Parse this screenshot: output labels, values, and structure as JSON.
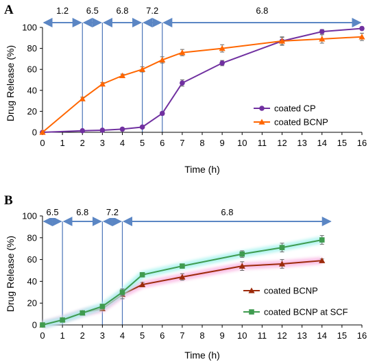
{
  "chart_data": [
    {
      "panel": "A",
      "type": "line",
      "xlabel": "Time (h)",
      "ylabel": "Drug Release (%)",
      "xlim": [
        0,
        16
      ],
      "ylim": [
        0,
        100
      ],
      "xticks": [
        0,
        1,
        2,
        3,
        4,
        5,
        6,
        7,
        8,
        9,
        10,
        11,
        12,
        13,
        14,
        15,
        16
      ],
      "yticks": [
        0,
        20,
        40,
        60,
        80,
        100
      ],
      "grid": false,
      "legend": "lower-right",
      "ph_segments": [
        {
          "label": "1.2",
          "from": 0,
          "to": 2
        },
        {
          "label": "6.5",
          "from": 2,
          "to": 3
        },
        {
          "label": "6.8",
          "from": 3,
          "to": 5
        },
        {
          "label": "7.2",
          "from": 5,
          "to": 6
        },
        {
          "label": "6.8",
          "from": 6,
          "to": 16
        }
      ],
      "series": [
        {
          "name": "coated CP",
          "color": "#7030a0",
          "marker": "circle",
          "x": [
            0,
            2,
            3,
            4,
            5,
            6,
            7,
            9,
            12,
            14,
            16
          ],
          "y": [
            0,
            1.5,
            2,
            3,
            5,
            18,
            47,
            66,
            87,
            96,
            99
          ],
          "err": [
            0,
            0.5,
            0.5,
            0.5,
            1,
            1.5,
            3,
            2.5,
            4,
            2,
            1.5
          ]
        },
        {
          "name": "coated BCNP",
          "color": "#ff6600",
          "marker": "triangle",
          "x": [
            0,
            2,
            3,
            4,
            5,
            6,
            7,
            9,
            12,
            14,
            16
          ],
          "y": [
            0,
            32,
            46,
            54,
            60,
            69,
            76,
            80,
            87,
            89,
            91
          ],
          "err": [
            0,
            1.5,
            1.5,
            1.5,
            2.5,
            3,
            3,
            3.5,
            3.5,
            4,
            3.5
          ]
        }
      ]
    },
    {
      "panel": "B",
      "type": "line",
      "xlabel": "Time (h)",
      "ylabel": "Drug Release (%)",
      "xlim": [
        0,
        16
      ],
      "ylim": [
        0,
        100
      ],
      "xticks": [
        0,
        1,
        2,
        3,
        4,
        5,
        6,
        7,
        8,
        9,
        10,
        11,
        12,
        13,
        14,
        15,
        16
      ],
      "yticks": [
        0,
        20,
        40,
        60,
        80,
        100
      ],
      "grid": false,
      "legend": "lower-right",
      "ph_segments": [
        {
          "label": "6.5",
          "from": 0,
          "to": 1
        },
        {
          "label": "6.8",
          "from": 1,
          "to": 3
        },
        {
          "label": "7.2",
          "from": 3,
          "to": 4
        },
        {
          "label": "6.8",
          "from": 4,
          "to": 14.5
        }
      ],
      "series": [
        {
          "name": "coated BCNP",
          "color": "#9c2a0a",
          "marker": "triangle",
          "glow": "#f9b6e2",
          "x": [
            0,
            1,
            2,
            3,
            4,
            5,
            7,
            10,
            12,
            14
          ],
          "y": [
            0,
            5,
            11,
            15,
            28,
            37,
            44,
            54,
            56,
            59
          ],
          "err": [
            0,
            1,
            1,
            1.5,
            4,
            2,
            3,
            4,
            4,
            1.5
          ]
        },
        {
          "name": "coated BCNP at SCF",
          "color": "#3f9b4f",
          "marker": "square",
          "glow": "#a8f3ee",
          "x": [
            0,
            1,
            2,
            3,
            4,
            5,
            7,
            10,
            12,
            14
          ],
          "y": [
            0,
            4.5,
            11,
            17,
            30,
            46,
            54,
            65,
            71,
            78
          ],
          "err": [
            0,
            1,
            1,
            1.5,
            3,
            2,
            2,
            3,
            4,
            4
          ]
        }
      ]
    }
  ]
}
